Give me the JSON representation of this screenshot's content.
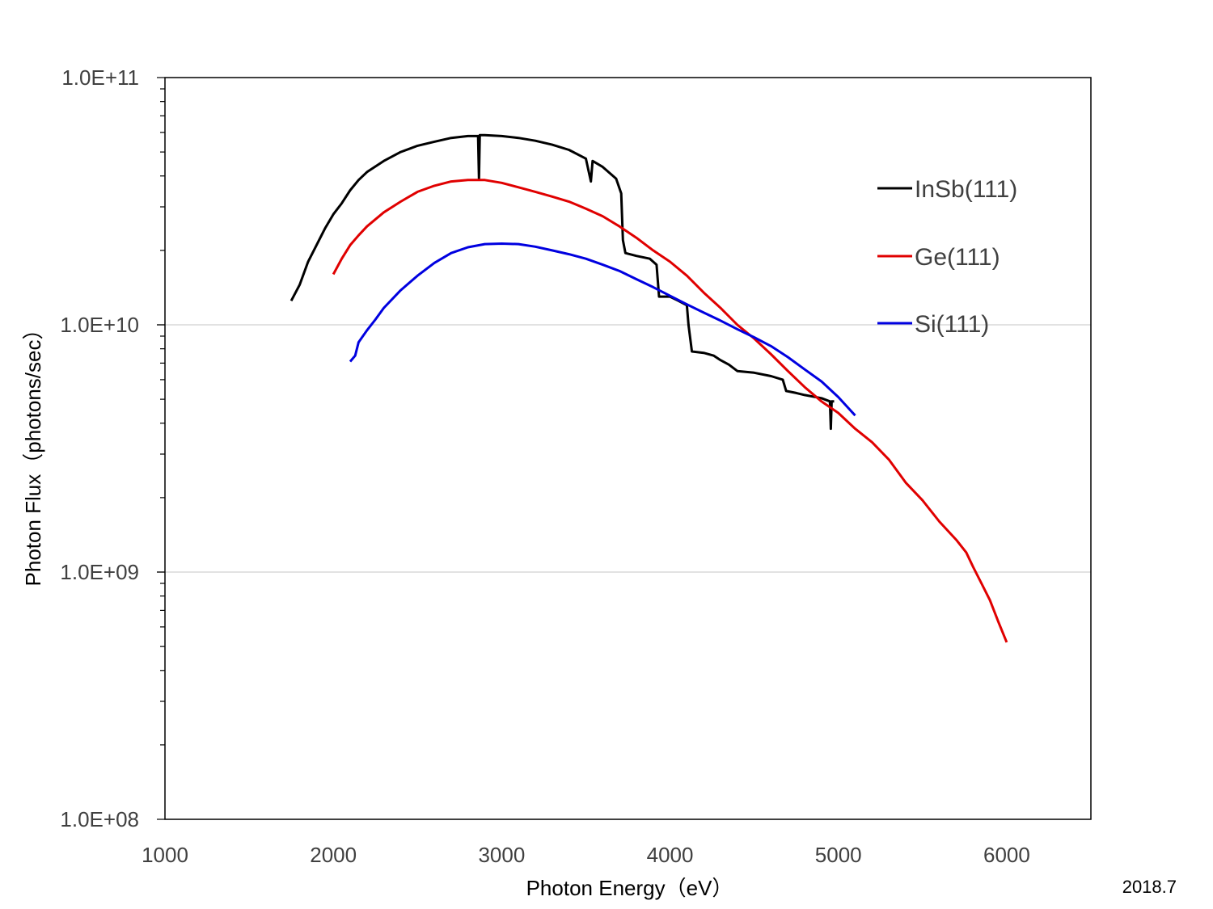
{
  "chart_data": {
    "type": "line",
    "xlabel": "Photon Energy（eV）",
    "ylabel": "Photon Flux（photons/sec）",
    "xlim": [
      1000,
      6500
    ],
    "ylim": [
      100000000,
      100000000000
    ],
    "yscale": "log",
    "grid": "horizontal-major",
    "legend_position": "right",
    "x_ticks": [
      "1000",
      "2000",
      "3000",
      "4000",
      "5000",
      "6000"
    ],
    "x_tick_values": [
      1000,
      2000,
      3000,
      4000,
      5000,
      6000
    ],
    "y_ticks": [
      "1.0E+08",
      "1.0E+09",
      "1.0E+10",
      "1.0E+11"
    ],
    "y_tick_values": [
      100000000,
      1000000000,
      10000000000,
      100000000000
    ],
    "series": [
      {
        "name": "InSb(111)",
        "color": "#000000",
        "points": [
          [
            1750,
            12500000000.0
          ],
          [
            1800,
            14500000000.0
          ],
          [
            1850,
            18000000000.0
          ],
          [
            1900,
            21000000000.0
          ],
          [
            1950,
            24500000000.0
          ],
          [
            2000,
            28000000000.0
          ],
          [
            2050,
            31000000000.0
          ],
          [
            2100,
            35000000000.0
          ],
          [
            2150,
            38500000000.0
          ],
          [
            2200,
            41500000000.0
          ],
          [
            2300,
            46000000000.0
          ],
          [
            2400,
            50000000000.0
          ],
          [
            2500,
            53000000000.0
          ],
          [
            2600,
            55000000000.0
          ],
          [
            2700,
            57000000000.0
          ],
          [
            2800,
            58000000000.0
          ],
          [
            2860,
            58000000000.0
          ],
          [
            2865,
            39000000000.0
          ],
          [
            2870,
            58500000000.0
          ],
          [
            2900,
            58500000000.0
          ],
          [
            3000,
            58000000000.0
          ],
          [
            3100,
            57000000000.0
          ],
          [
            3200,
            55500000000.0
          ],
          [
            3300,
            53500000000.0
          ],
          [
            3400,
            51000000000.0
          ],
          [
            3500,
            47000000000.0
          ],
          [
            3530,
            38000000000.0
          ],
          [
            3540,
            46000000000.0
          ],
          [
            3600,
            43500000000.0
          ],
          [
            3680,
            39000000000.0
          ],
          [
            3710,
            34000000000.0
          ],
          [
            3720,
            22000000000.0
          ],
          [
            3735,
            19500000000.0
          ],
          [
            3800,
            19000000000.0
          ],
          [
            3880,
            18500000000.0
          ],
          [
            3920,
            17500000000.0
          ],
          [
            3935,
            13000000000.0
          ],
          [
            4000,
            13000000000.0
          ],
          [
            4050,
            12500000000.0
          ],
          [
            4100,
            12000000000.0
          ],
          [
            4110,
            10000000000.0
          ],
          [
            4130,
            7800000000.0
          ],
          [
            4200,
            7700000000.0
          ],
          [
            4260,
            7500000000.0
          ],
          [
            4300,
            7200000000.0
          ],
          [
            4350,
            6900000000.0
          ],
          [
            4400,
            6500000000.0
          ],
          [
            4500,
            6400000000.0
          ],
          [
            4600,
            6200000000.0
          ],
          [
            4670,
            6000000000.0
          ],
          [
            4690,
            5400000000.0
          ],
          [
            4750,
            5300000000.0
          ],
          [
            4800,
            5200000000.0
          ],
          [
            4900,
            5050000000.0
          ],
          [
            4950,
            4900000000.0
          ],
          [
            4955,
            3800000000.0
          ],
          [
            4960,
            4900000000.0
          ],
          [
            4975,
            4900000000.0
          ]
        ]
      },
      {
        "name": "Ge(111)",
        "color": "#e00000",
        "points": [
          [
            2000,
            16000000000.0
          ],
          [
            2050,
            18500000000.0
          ],
          [
            2100,
            21000000000.0
          ],
          [
            2150,
            23000000000.0
          ],
          [
            2200,
            25000000000.0
          ],
          [
            2300,
            28500000000.0
          ],
          [
            2400,
            31500000000.0
          ],
          [
            2500,
            34500000000.0
          ],
          [
            2600,
            36500000000.0
          ],
          [
            2700,
            38000000000.0
          ],
          [
            2800,
            38500000000.0
          ],
          [
            2900,
            38500000000.0
          ],
          [
            3000,
            37500000000.0
          ],
          [
            3100,
            36000000000.0
          ],
          [
            3200,
            34500000000.0
          ],
          [
            3300,
            33000000000.0
          ],
          [
            3400,
            31500000000.0
          ],
          [
            3500,
            29500000000.0
          ],
          [
            3600,
            27500000000.0
          ],
          [
            3700,
            25000000000.0
          ],
          [
            3800,
            22500000000.0
          ],
          [
            3900,
            20000000000.0
          ],
          [
            4000,
            18000000000.0
          ],
          [
            4100,
            15800000000.0
          ],
          [
            4200,
            13500000000.0
          ],
          [
            4300,
            11700000000.0
          ],
          [
            4400,
            10000000000.0
          ],
          [
            4500,
            8800000000.0
          ],
          [
            4600,
            7600000000.0
          ],
          [
            4700,
            6500000000.0
          ],
          [
            4800,
            5600000000.0
          ],
          [
            4900,
            4900000000.0
          ],
          [
            5000,
            4400000000.0
          ],
          [
            5100,
            3800000000.0
          ],
          [
            5200,
            3350000000.0
          ],
          [
            5300,
            2850000000.0
          ],
          [
            5400,
            2300000000.0
          ],
          [
            5500,
            1950000000.0
          ],
          [
            5600,
            1600000000.0
          ],
          [
            5700,
            1350000000.0
          ],
          [
            5760,
            1200000000.0
          ],
          [
            5800,
            1050000000.0
          ],
          [
            5850,
            900000000.0
          ],
          [
            5900,
            770000000.0
          ],
          [
            5950,
            630000000.0
          ],
          [
            6000,
            520000000.0
          ]
        ]
      },
      {
        "name": "Si(111)",
        "color": "#0000e0",
        "points": [
          [
            2100,
            7100000000.0
          ],
          [
            2130,
            7500000000.0
          ],
          [
            2150,
            8500000000.0
          ],
          [
            2200,
            9500000000.0
          ],
          [
            2250,
            10500000000.0
          ],
          [
            2300,
            11700000000.0
          ],
          [
            2400,
            13800000000.0
          ],
          [
            2500,
            15800000000.0
          ],
          [
            2600,
            17800000000.0
          ],
          [
            2700,
            19500000000.0
          ],
          [
            2800,
            20600000000.0
          ],
          [
            2900,
            21200000000.0
          ],
          [
            3000,
            21300000000.0
          ],
          [
            3100,
            21200000000.0
          ],
          [
            3200,
            20700000000.0
          ],
          [
            3300,
            20000000000.0
          ],
          [
            3400,
            19300000000.0
          ],
          [
            3500,
            18500000000.0
          ],
          [
            3600,
            17500000000.0
          ],
          [
            3700,
            16500000000.0
          ],
          [
            3800,
            15300000000.0
          ],
          [
            3900,
            14200000000.0
          ],
          [
            4000,
            13100000000.0
          ],
          [
            4100,
            12100000000.0
          ],
          [
            4200,
            11200000000.0
          ],
          [
            4300,
            10400000000.0
          ],
          [
            4400,
            9600000000.0
          ],
          [
            4500,
            8900000000.0
          ],
          [
            4600,
            8200000000.0
          ],
          [
            4700,
            7400000000.0
          ],
          [
            4800,
            6600000000.0
          ],
          [
            4900,
            5900000000.0
          ],
          [
            5000,
            5100000000.0
          ],
          [
            5100,
            4300000000.0
          ]
        ]
      }
    ]
  },
  "footer": {
    "date": "2018.7"
  }
}
